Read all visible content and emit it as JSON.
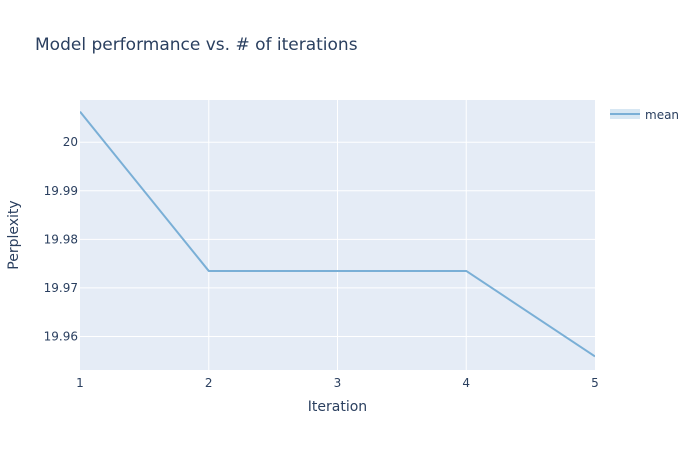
{
  "chart_data": {
    "type": "line",
    "title": "Model performance vs. # of iterations",
    "xlabel": "Iteration",
    "ylabel": "Perplexity",
    "xlim": [
      1,
      5
    ],
    "ylim": [
      19.9531,
      20.0087
    ],
    "x_ticks": [
      "1",
      "2",
      "3",
      "4",
      "5"
    ],
    "y_ticks": [
      "19.96",
      "19.97",
      "19.98",
      "19.99",
      "20"
    ],
    "grid": true,
    "legend_position": "top-right",
    "series": [
      {
        "name": "mean",
        "color": "#7aafd6",
        "x": [
          1,
          2,
          3,
          4,
          5
        ],
        "y": [
          20.0063,
          19.9735,
          19.9735,
          19.9735,
          19.9559
        ]
      }
    ]
  },
  "colors": {
    "plot_background": "#e5ecf6",
    "gridline": "#ffffff",
    "text": "#2a3f5f"
  }
}
